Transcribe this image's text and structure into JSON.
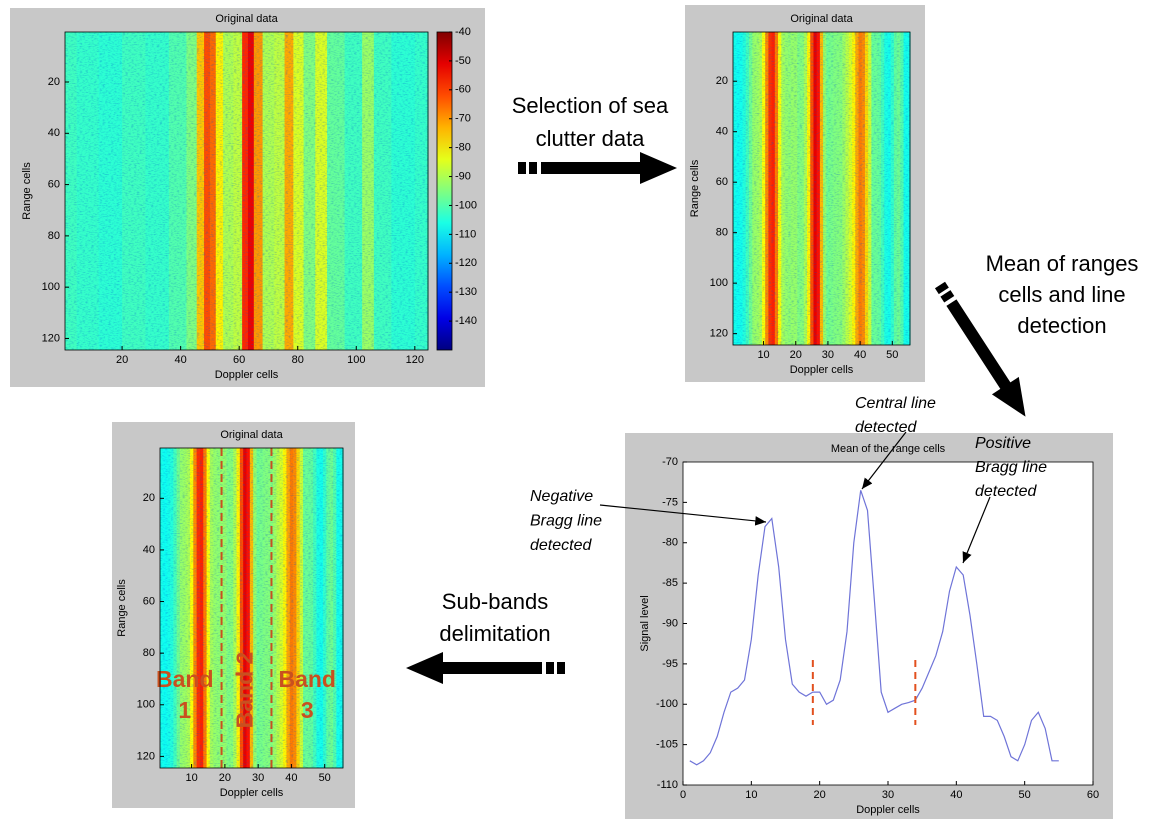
{
  "chart_data": [
    {
      "type": "heatmap",
      "title": "Original data",
      "xlabel": "Doppler cells",
      "ylabel": "Range cells",
      "xlim": [
        0.5,
        124.5
      ],
      "ylim": [
        0.5,
        124.5
      ],
      "xticks": [
        20,
        40,
        60,
        80,
        100,
        120
      ],
      "yticks": [
        20,
        40,
        60,
        80,
        100,
        120
      ],
      "clim": [
        -150,
        -40
      ],
      "cticks": [
        -40,
        -50,
        -60,
        -70,
        -80,
        -90,
        -100,
        -110,
        -120,
        -130,
        -140
      ],
      "x": [
        1,
        8,
        16,
        24,
        32,
        40,
        44,
        47,
        49,
        51,
        53,
        56,
        60,
        62,
        64,
        66,
        70,
        74,
        77,
        80,
        84,
        88,
        92,
        100,
        104,
        108,
        116,
        124
      ],
      "values": [
        -102,
        -103,
        -104,
        -102,
        -103,
        -100,
        -95,
        -75,
        -62,
        -65,
        -80,
        -90,
        -88,
        -58,
        -52,
        -70,
        -90,
        -88,
        -72,
        -85,
        -95,
        -85,
        -98,
        -102,
        -92,
        -102,
        -104,
        -103
      ]
    },
    {
      "type": "heatmap",
      "title": "Original data",
      "xlabel": "Doppler cells",
      "ylabel": "Range cells",
      "xlim": [
        0.5,
        55.5
      ],
      "ylim": [
        0.5,
        124.5
      ],
      "xticks": [
        10,
        20,
        30,
        40,
        50
      ],
      "yticks": [
        20,
        40,
        60,
        80,
        100,
        120
      ]
    },
    {
      "type": "heatmap",
      "title": "Original data",
      "xlabel": "Doppler cells",
      "ylabel": "Range cells",
      "xlim": [
        0.5,
        55.5
      ],
      "ylim": [
        0.5,
        124.5
      ],
      "xticks": [
        10,
        20,
        30,
        40,
        50
      ],
      "yticks": [
        20,
        40,
        60,
        80,
        100,
        120
      ],
      "band_edges": [
        19,
        34
      ],
      "band_labels": [
        "Band 1",
        "Band 2",
        "Band 3"
      ]
    },
    {
      "type": "line",
      "title": "Mean of the range cells",
      "xlabel": "Doppler cells",
      "ylabel": "Signal level",
      "xlim": [
        0,
        60
      ],
      "ylim": [
        -110,
        -70
      ],
      "xticks": [
        0,
        10,
        20,
        30,
        40,
        50,
        60
      ],
      "yticks": [
        -110,
        -105,
        -100,
        -95,
        -90,
        -85,
        -80,
        -75,
        -70
      ],
      "color": "#6f74d8",
      "markers": [
        19,
        34
      ],
      "x": [
        1,
        2,
        3,
        4,
        5,
        6,
        7,
        8,
        9,
        10,
        11,
        12,
        13,
        14,
        15,
        16,
        17,
        18,
        19,
        20,
        21,
        22,
        23,
        24,
        25,
        26,
        27,
        28,
        29,
        30,
        31,
        32,
        33,
        34,
        35,
        36,
        37,
        38,
        39,
        40,
        41,
        42,
        43,
        44,
        45,
        46,
        47,
        48,
        49,
        50,
        51,
        52,
        53,
        54,
        55
      ],
      "values": [
        -107,
        -107.5,
        -107,
        -106,
        -104,
        -101,
        -98.5,
        -98,
        -97,
        -92,
        -84,
        -78,
        -77,
        -83,
        -92,
        -97.5,
        -98.5,
        -99,
        -98.5,
        -98.5,
        -100,
        -99.5,
        -97,
        -91,
        -80,
        -73.5,
        -76,
        -87,
        -98.5,
        -101,
        -100.5,
        -100,
        -99.8,
        -99.5,
        -98,
        -96,
        -94,
        -91,
        -86,
        -83,
        -84,
        -89,
        -95,
        -101.5,
        -101.5,
        -102,
        -104,
        -106.5,
        -107,
        -105,
        -102,
        -101,
        -103,
        -107,
        -107
      ],
      "annotations": [
        [
          "Central line",
          "detected"
        ],
        [
          "Negative",
          "Bragg line",
          "detected"
        ],
        [
          "Positive",
          "Bragg line",
          "detected"
        ]
      ]
    }
  ],
  "steps": [
    [
      "Selection of sea",
      "clutter data"
    ],
    [
      "Mean of ranges",
      "cells and line",
      "detection"
    ],
    [
      "Sub-bands",
      "delimitation"
    ]
  ]
}
